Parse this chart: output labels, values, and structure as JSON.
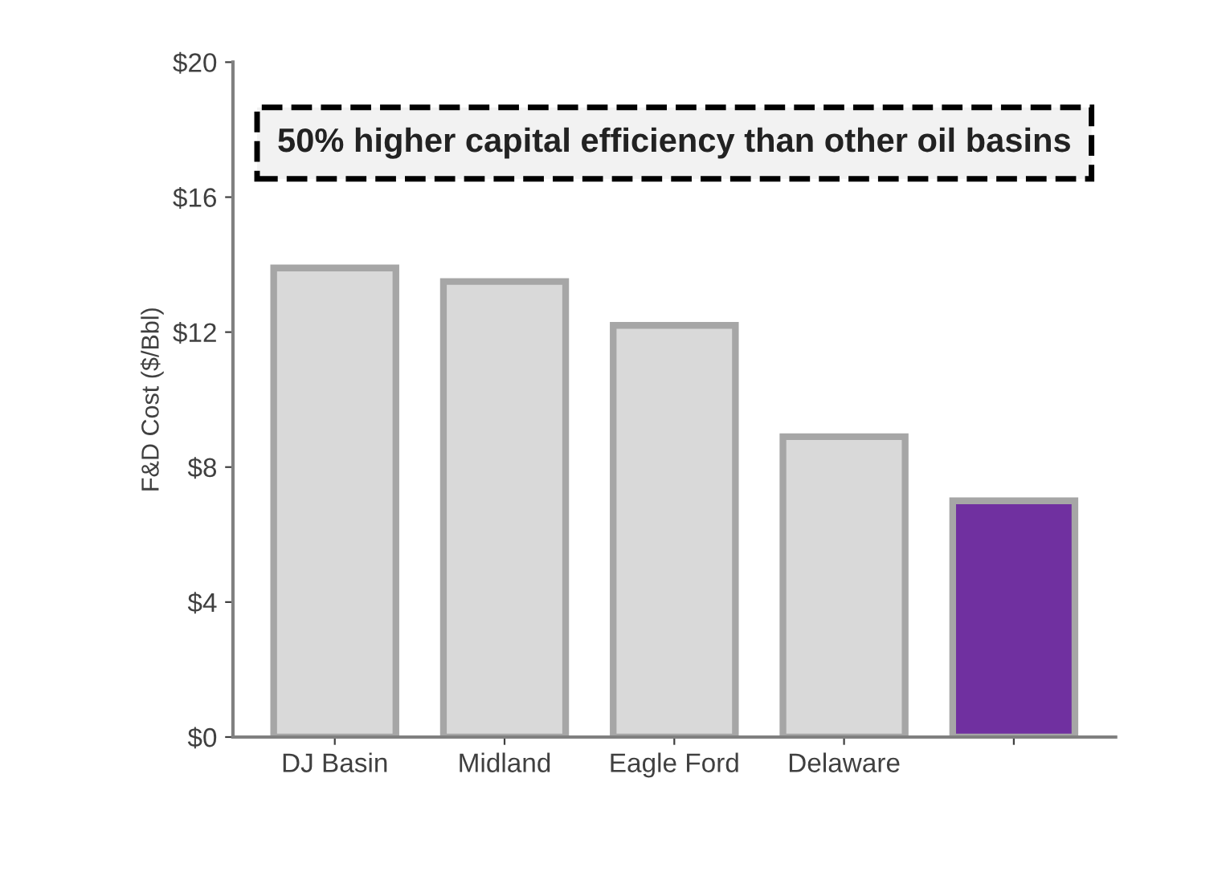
{
  "chart_data": {
    "type": "bar",
    "ylabel": "F&D Cost ($/Bbl)",
    "categories": [
      "DJ Basin",
      "Midland",
      "Eagle Ford",
      "Delaware",
      null
    ],
    "values": [
      13.9,
      13.5,
      12.2,
      8.9,
      7.0
    ],
    "colors": [
      "#d9d9d9",
      "#d9d9d9",
      "#d9d9d9",
      "#d9d9d9",
      "#7030a0"
    ],
    "ylim": [
      0,
      20
    ],
    "yticks": [
      {
        "value": 0,
        "label": "$0"
      },
      {
        "value": 4,
        "label": "$4"
      },
      {
        "value": 8,
        "label": "$8"
      },
      {
        "value": 12,
        "label": "$12"
      },
      {
        "value": 16,
        "label": "$16"
      },
      {
        "value": 20,
        "label": "$20"
      }
    ],
    "annotations": [
      "50% higher capital efficiency than other oil basins"
    ],
    "grid": false,
    "legend": false
  }
}
